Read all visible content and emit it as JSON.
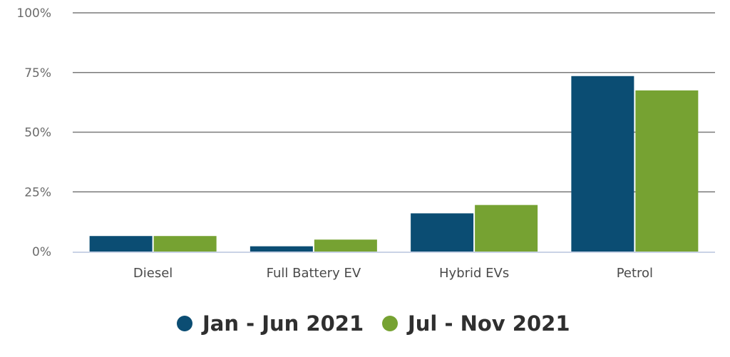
{
  "chart_data": {
    "type": "bar",
    "title": "",
    "xlabel": "",
    "ylabel": "",
    "categories": [
      "Diesel",
      "Full Battery EV",
      "Hybrid EVs",
      "Petrol"
    ],
    "series": [
      {
        "name": "Jan - Jun 2021",
        "color": "#0b4d73",
        "values": [
          6.5,
          2.2,
          16.0,
          73.5
        ]
      },
      {
        "name": "Jul - Nov 2021",
        "color": "#76a232",
        "values": [
          6.5,
          5.0,
          19.5,
          67.5
        ]
      }
    ],
    "ylim": [
      0,
      100
    ],
    "yticks": [
      0,
      25,
      50,
      75,
      100
    ],
    "ytick_labels": [
      "0%",
      "25%",
      "50%",
      "75%",
      "100%"
    ],
    "grid": true,
    "legend_position": "bottom"
  }
}
